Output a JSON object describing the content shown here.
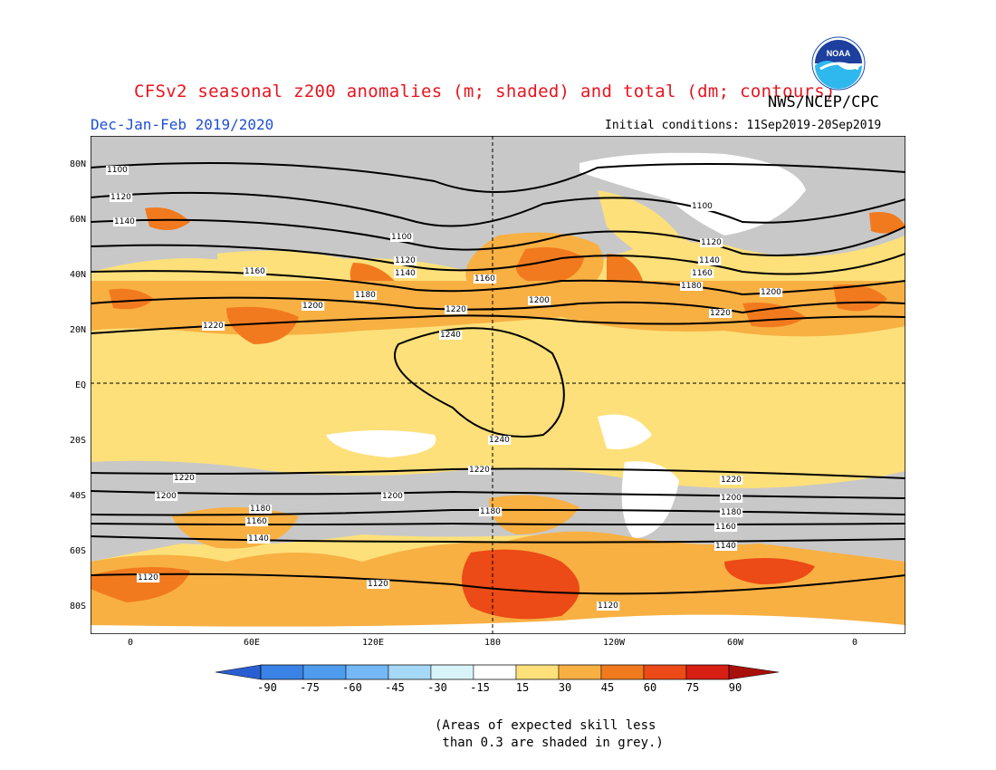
{
  "title": "CFSv2 seasonal z200 anomalies (m; shaded) and total (dm; contours)",
  "org": "NWS/NCEP/CPC",
  "period": "Dec-Jan-Feb 2019/2020",
  "initial_conditions": "Initial conditions: 11Sep2019-20Sep2019",
  "logo_text": "NOAA",
  "lat_labels": [
    "80N",
    "60N",
    "40N",
    "20N",
    "EQ",
    "20S",
    "40S",
    "60S",
    "80S"
  ],
  "lon_labels": [
    "0",
    "60E",
    "120E",
    "180",
    "120W",
    "60W",
    "0"
  ],
  "colorbar": {
    "ticks": [
      "-90",
      "-75",
      "-60",
      "-45",
      "-30",
      "-15",
      "15",
      "30",
      "45",
      "60",
      "75",
      "90"
    ],
    "colors": [
      "#2a5fd1",
      "#3a82e6",
      "#4f9cef",
      "#74b8f5",
      "#a6d8f7",
      "#d9f4f8",
      "#ffffff",
      "#fde07a",
      "#f8b043",
      "#f27a1e",
      "#ec4a16",
      "#d81f14",
      "#a8100c"
    ]
  },
  "note": "(Areas of expected skill less\n than 0.3 are shaded in grey.)",
  "contour_labels": {
    "row_1100": "1100",
    "row_1120": "1120",
    "row_1140": "1140",
    "row_1160": "1160",
    "row_1180": "1180",
    "row_1200": "1200",
    "row_1220": "1220",
    "row_1240": "1240"
  },
  "colors": {
    "grey": "#c8c8c8",
    "background": "#fde07a",
    "title": "#e8141e",
    "period": "#1f4fd6"
  }
}
